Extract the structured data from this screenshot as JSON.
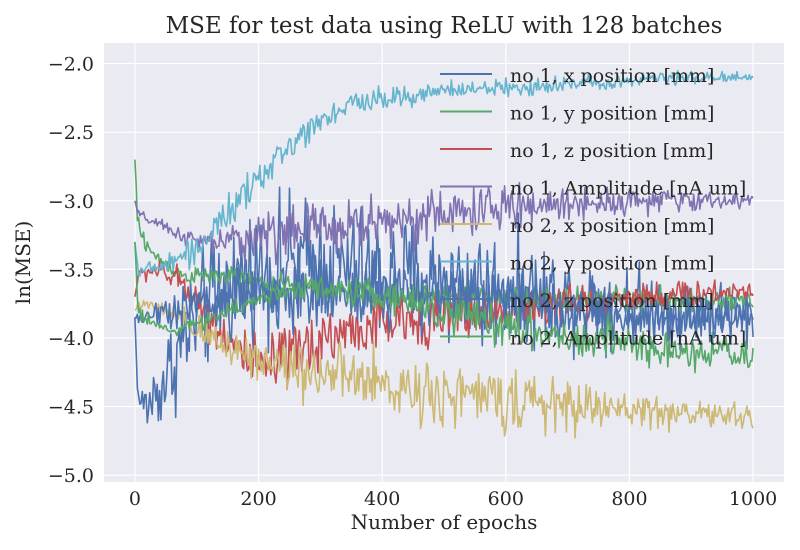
{
  "chart_data": {
    "type": "line",
    "title": "MSE for test data using ReLU with 128 batches",
    "xlabel": "Number of epochs",
    "ylabel": "ln(MSE)",
    "xlim": [
      -50,
      1050
    ],
    "ylim": [
      -5.05,
      -1.85
    ],
    "xticks": [
      0,
      200,
      400,
      600,
      800,
      1000
    ],
    "yticks": [
      -5.0,
      -4.5,
      -4.0,
      -3.5,
      -3.0,
      -2.5,
      -2.0
    ],
    "xtick_labels": [
      "0",
      "200",
      "400",
      "600",
      "800",
      "1000"
    ],
    "ytick_labels": [
      "−5.0",
      "−4.5",
      "−4.0",
      "−3.5",
      "−3.0",
      "−2.5",
      "−2.0"
    ],
    "grid": true,
    "legend_position": "upper-right",
    "background": "#EAEAF2",
    "series": [
      {
        "name": "no 1, x position [mm]",
        "color": "#4C72B0",
        "x": [
          0,
          5,
          20,
          50,
          80,
          120,
          160,
          200,
          250,
          300,
          350,
          400,
          500,
          600,
          700,
          800,
          900,
          1000
        ],
        "y": [
          -3.85,
          -4.45,
          -4.5,
          -4.3,
          -4.0,
          -3.75,
          -3.6,
          -3.5,
          -3.45,
          -3.45,
          -3.5,
          -3.55,
          -3.6,
          -3.65,
          -3.7,
          -3.75,
          -3.8,
          -3.85
        ],
        "noise": [
          0,
          0.05,
          0.2,
          0.3,
          0.35,
          0.4,
          0.4,
          0.4,
          0.4,
          0.4,
          0.4,
          0.4,
          0.38,
          0.35,
          0.3,
          0.25,
          0.22,
          0.2
        ]
      },
      {
        "name": "no 1, y position [mm]",
        "color": "#55A868",
        "x": [
          0,
          5,
          30,
          80,
          150,
          200,
          300,
          400,
          500,
          600,
          700,
          800,
          900,
          1000
        ],
        "y": [
          -2.7,
          -3.2,
          -3.4,
          -3.55,
          -3.55,
          -3.6,
          -3.65,
          -3.7,
          -3.7,
          -3.7,
          -3.72,
          -3.72,
          -3.73,
          -3.75
        ],
        "noise": [
          0,
          0.08,
          0.05,
          0.05,
          0.06,
          0.06,
          0.08,
          0.08,
          0.08,
          0.08,
          0.08,
          0.08,
          0.08,
          0.08
        ]
      },
      {
        "name": "no 1, z position [mm]",
        "color": "#C44E52",
        "x": [
          0,
          5,
          30,
          80,
          130,
          200,
          250,
          300,
          400,
          500,
          600,
          700,
          800,
          900,
          1000
        ],
        "y": [
          -3.7,
          -3.55,
          -3.5,
          -3.6,
          -3.9,
          -4.25,
          -4.15,
          -4.0,
          -3.9,
          -3.85,
          -3.8,
          -3.75,
          -3.7,
          -3.68,
          -3.65
        ],
        "noise": [
          0,
          0.05,
          0.06,
          0.1,
          0.15,
          0.2,
          0.2,
          0.2,
          0.18,
          0.15,
          0.15,
          0.12,
          0.1,
          0.08,
          0.08
        ]
      },
      {
        "name": "no 1, Amplitude [nA um]",
        "color": "#8172B2",
        "x": [
          0,
          5,
          50,
          100,
          150,
          200,
          300,
          400,
          500,
          600,
          700,
          800,
          900,
          1000
        ],
        "y": [
          -3.0,
          -3.1,
          -3.2,
          -3.3,
          -3.3,
          -3.25,
          -3.2,
          -3.15,
          -3.1,
          -3.05,
          -3.02,
          -3.0,
          -3.0,
          -3.0
        ],
        "noise": [
          0,
          0.03,
          0.04,
          0.06,
          0.1,
          0.15,
          0.18,
          0.18,
          0.16,
          0.14,
          0.1,
          0.08,
          0.06,
          0.05
        ]
      },
      {
        "name": "no 2, x position [mm]",
        "color": "#CCB974",
        "x": [
          0,
          5,
          50,
          100,
          150,
          200,
          300,
          400,
          500,
          600,
          700,
          800,
          900,
          1000
        ],
        "y": [
          -3.8,
          -3.75,
          -3.8,
          -3.95,
          -4.05,
          -4.15,
          -4.25,
          -4.35,
          -4.4,
          -4.45,
          -4.5,
          -4.52,
          -4.55,
          -4.58
        ],
        "noise": [
          0,
          0.03,
          0.05,
          0.1,
          0.12,
          0.15,
          0.2,
          0.2,
          0.2,
          0.18,
          0.15,
          0.12,
          0.1,
          0.08
        ]
      },
      {
        "name": "no 2, y position [mm]",
        "color": "#64B5CD",
        "x": [
          0,
          5,
          30,
          60,
          100,
          150,
          200,
          250,
          300,
          350,
          400,
          500,
          600,
          700,
          800,
          900,
          1000
        ],
        "y": [
          -3.3,
          -3.5,
          -3.5,
          -3.45,
          -3.35,
          -3.1,
          -2.85,
          -2.6,
          -2.4,
          -2.3,
          -2.25,
          -2.2,
          -2.18,
          -2.15,
          -2.12,
          -2.1,
          -2.1
        ],
        "noise": [
          0,
          0.03,
          0.05,
          0.07,
          0.1,
          0.1,
          0.1,
          0.1,
          0.08,
          0.08,
          0.08,
          0.06,
          0.06,
          0.05,
          0.04,
          0.04,
          0.03
        ]
      },
      {
        "name": "no 2, z position [mm]",
        "color": "#4C72B0",
        "x": [
          0,
          5,
          50,
          100,
          200,
          300,
          400,
          500,
          600,
          700,
          800,
          900,
          1000
        ],
        "y": [
          -3.85,
          -3.85,
          -3.8,
          -3.75,
          -3.7,
          -3.65,
          -3.65,
          -3.7,
          -3.75,
          -3.8,
          -3.85,
          -3.85,
          -3.85
        ],
        "noise": [
          0,
          0.05,
          0.1,
          0.15,
          0.2,
          0.25,
          0.25,
          0.25,
          0.2,
          0.18,
          0.15,
          0.12,
          0.1
        ]
      },
      {
        "name": "no 2, Amplitude [nA um]",
        "color": "#55A868",
        "x": [
          0,
          5,
          30,
          60,
          100,
          150,
          200,
          250,
          300,
          400,
          500,
          600,
          700,
          800,
          900,
          1000
        ],
        "y": [
          -3.3,
          -3.8,
          -3.9,
          -3.95,
          -3.9,
          -3.8,
          -3.72,
          -3.65,
          -3.62,
          -3.7,
          -3.8,
          -3.9,
          -4.0,
          -4.05,
          -4.1,
          -4.15
        ],
        "noise": [
          0,
          0.05,
          0.03,
          0.03,
          0.04,
          0.05,
          0.06,
          0.06,
          0.08,
          0.1,
          0.12,
          0.13,
          0.13,
          0.12,
          0.12,
          0.12
        ]
      }
    ]
  }
}
